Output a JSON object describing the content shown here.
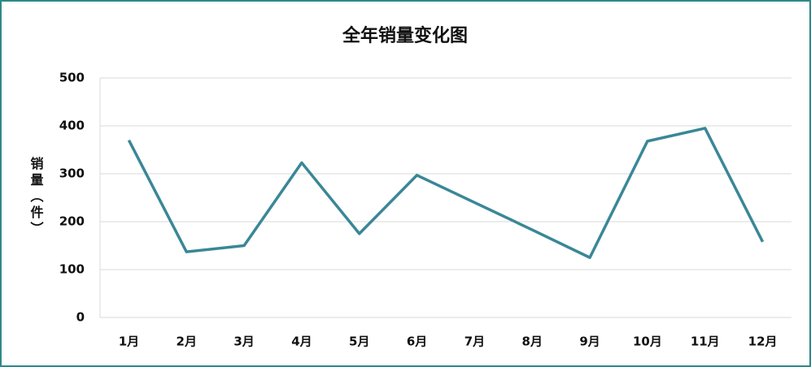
{
  "chart_data": {
    "type": "line",
    "title": "全年销量变化图",
    "y_label": "销量（件）",
    "categories": [
      "1月",
      "2月",
      "3月",
      "4月",
      "5月",
      "6月",
      "7月",
      "8月",
      "9月",
      "10月",
      "11月",
      "12月"
    ],
    "values": [
      370,
      137,
      150,
      323,
      175,
      297,
      240,
      183,
      125,
      368,
      395,
      158
    ],
    "color": "#3a8797",
    "ylim": [
      0,
      500
    ],
    "yticks": [
      0,
      100,
      200,
      300,
      400,
      500
    ],
    "grid": true
  }
}
